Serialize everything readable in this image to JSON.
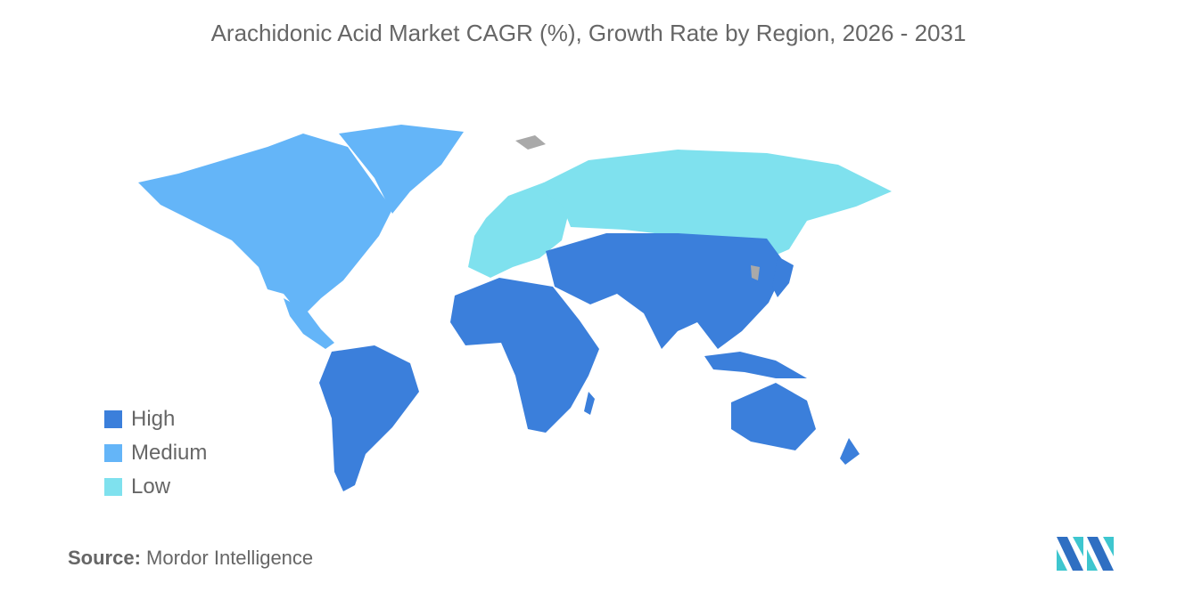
{
  "title": "Arachidonic Acid Market CAGR (%), Growth Rate by Region, 2026 - 2031",
  "colors": {
    "high": "#3b7fdb",
    "medium": "#64b5f8",
    "low": "#7fe1ee",
    "no_data": "#a9a9a9"
  },
  "legend": [
    {
      "label": "High",
      "color": "#3b7fdb"
    },
    {
      "label": "Medium",
      "color": "#64b5f8"
    },
    {
      "label": "Low",
      "color": "#7fe1ee"
    }
  ],
  "regions": {
    "north_america": "Medium",
    "south_america": "High",
    "europe": "Low",
    "russia": "Low",
    "asia_pacific": "High",
    "middle_east_africa": "High"
  },
  "source": {
    "label": "Source:",
    "value": "Mordor Intelligence"
  },
  "logo": "mordor-intelligence-logo"
}
